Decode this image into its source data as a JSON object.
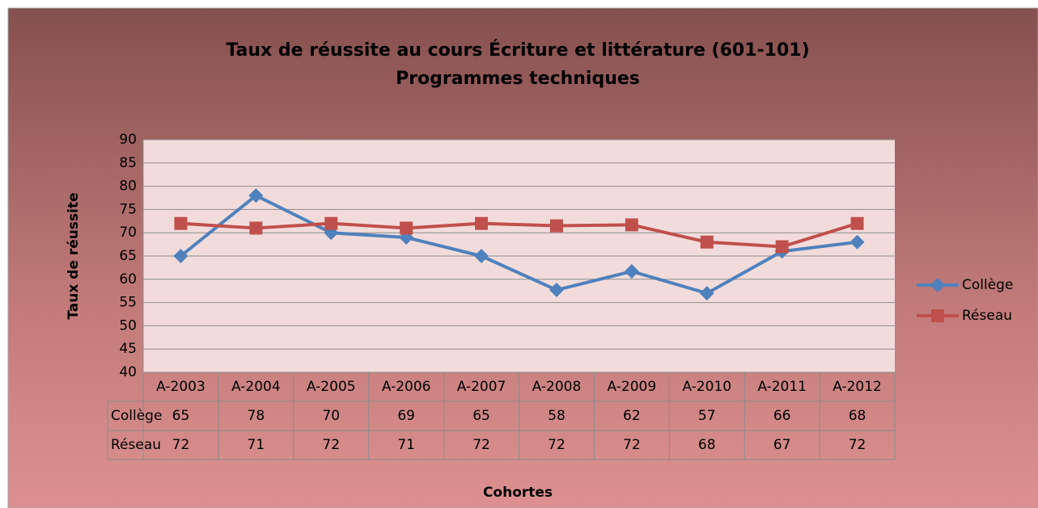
{
  "chart_data": {
    "type": "line",
    "title": "Taux de réussite au cours Écriture et littérature (601-101)",
    "subtitle": "Programmes techniques",
    "x_label": "Cohortes",
    "y_label": "Taux de réussite",
    "categories": [
      "A-2003",
      "A-2004",
      "A-2005",
      "A-2006",
      "A-2007",
      "A-2008",
      "A-2009",
      "A-2010",
      "A-2011",
      "A-2012"
    ],
    "series": [
      {
        "name": "Collège",
        "color": "#4f81bd",
        "marker": "diamond",
        "values": [
          65,
          78,
          70,
          69,
          65,
          57.7,
          61.7,
          57,
          66,
          68
        ],
        "value_labels": [
          "65",
          "78",
          "70",
          "69",
          "65",
          "58",
          "62",
          "57",
          "66",
          "68"
        ]
      },
      {
        "name": "Réseau",
        "color": "#c0504d",
        "marker": "square",
        "values": [
          72,
          71,
          72,
          71,
          72,
          71.5,
          71.7,
          68,
          67,
          72
        ],
        "value_labels": [
          "72",
          "71",
          "72",
          "71",
          "72",
          "72",
          "72",
          "68",
          "67",
          "72"
        ]
      }
    ],
    "ylim": [
      40,
      90
    ],
    "yticks": [
      40,
      45,
      50,
      55,
      60,
      65,
      70,
      75,
      80,
      85,
      90
    ],
    "grid": true,
    "legend": "right"
  }
}
